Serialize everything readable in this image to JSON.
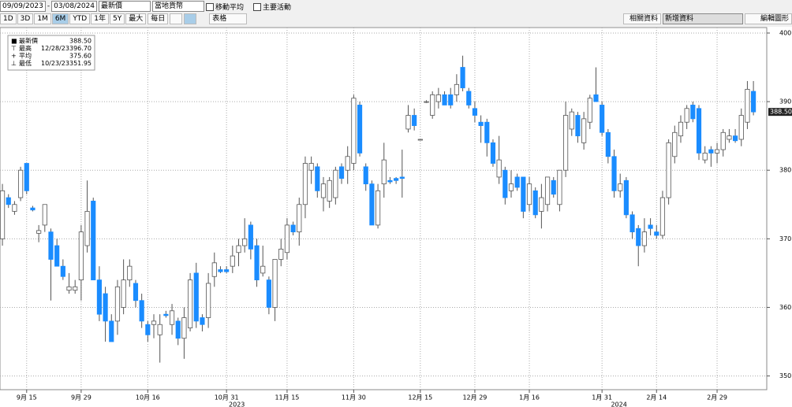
{
  "toolbar": {
    "start_date": "09/09/2023",
    "end_date": "03/08/2024",
    "field": "最新價",
    "currency": "當地貨幣",
    "moving_average": "移動平均",
    "events": "主要活動",
    "periods": [
      "1D",
      "3D",
      "1M",
      "6M",
      "YTD",
      "1年",
      "5Y",
      "最大"
    ],
    "frequency": "每日",
    "table": "表格",
    "related": "相關資料",
    "add_data": "新增資料",
    "edit_chart": "編輯圖形"
  },
  "legend": [
    {
      "label": "最新價",
      "value": "388.50"
    },
    {
      "label": "最高",
      "date": "12/28/23",
      "value": "396.70"
    },
    {
      "label": "平均",
      "value": "375.60"
    },
    {
      "label": "最低",
      "date": "10/23/23",
      "value": "351.95"
    }
  ],
  "chart_data": {
    "type": "candlestick",
    "up_color": "#ffffff",
    "down_color": "#1a8cff",
    "grid": true,
    "xlim": [
      -0.4,
      126.2
    ],
    "ylim": [
      348,
      400.8
    ],
    "yticks": [
      350,
      360,
      370,
      380,
      390,
      400
    ],
    "xticks": [
      {
        "value": 4,
        "label": "9月 15"
      },
      {
        "value": 13,
        "label": "9月 29"
      },
      {
        "value": 24,
        "label": "10月 16"
      },
      {
        "value": 37,
        "label": "10月 31"
      },
      {
        "value": 47,
        "label": "11月 15"
      },
      {
        "value": 58,
        "label": "11月 30"
      },
      {
        "value": 69,
        "label": "12月 15"
      },
      {
        "value": 78,
        "label": "12月 29"
      },
      {
        "value": 87,
        "label": "1月 16"
      },
      {
        "value": 99,
        "label": "1月 31"
      },
      {
        "value": 108,
        "label": "2月 14"
      },
      {
        "value": 118,
        "label": "2月 29"
      }
    ],
    "year_labels": [
      {
        "value": 38.7,
        "label": "2023"
      },
      {
        "value": 101.8,
        "label": "2024"
      }
    ],
    "ohlc": [
      [
        370,
        378,
        369,
        377
      ],
      [
        376,
        376.5,
        374.5,
        375
      ],
      [
        374,
        375.5,
        373.5,
        375
      ],
      [
        376,
        380.5,
        375.5,
        380
      ],
      [
        381,
        381,
        376.5,
        377
      ],
      [
        374.5,
        374.8,
        374,
        374.2
      ],
      [
        370.8,
        372,
        369.5,
        371.2
      ],
      [
        372,
        375,
        371,
        375
      ],
      [
        371,
        371.5,
        361,
        367
      ],
      [
        369,
        370,
        366,
        366
      ],
      [
        366,
        367,
        364,
        364.5
      ],
      [
        362.5,
        365,
        362,
        363
      ],
      [
        362.5,
        364,
        362,
        363
      ],
      [
        364,
        372,
        361,
        371
      ],
      [
        369,
        378.5,
        368,
        374
      ],
      [
        375.5,
        376,
        364,
        364
      ],
      [
        364,
        366,
        358,
        359
      ],
      [
        362,
        363,
        355,
        358
      ],
      [
        358,
        359,
        355,
        355
      ],
      [
        358,
        364,
        356,
        363
      ],
      [
        360,
        367,
        359,
        364
      ],
      [
        364,
        367,
        363,
        366
      ],
      [
        363.5,
        364,
        360,
        361
      ],
      [
        361,
        362,
        357,
        358
      ],
      [
        357.5,
        358,
        355,
        356
      ],
      [
        357.5,
        359,
        355.5,
        358
      ],
      [
        356,
        359,
        351.95,
        357.5
      ],
      [
        359,
        359.5,
        358.5,
        358.8
      ],
      [
        357.5,
        360.5,
        356,
        359.5
      ],
      [
        358,
        358.5,
        354.5,
        355.5
      ],
      [
        355.5,
        360,
        352.5,
        358.5
      ],
      [
        357,
        365,
        356.5,
        364
      ],
      [
        365,
        366.5,
        357,
        358
      ],
      [
        358.5,
        359,
        356.5,
        357.5
      ],
      [
        358.5,
        365,
        357,
        363.5
      ],
      [
        364.5,
        368,
        363,
        366.5
      ],
      [
        365.5,
        366,
        365,
        365.2
      ],
      [
        365.5,
        366,
        365,
        365.2
      ],
      [
        366,
        369,
        365,
        367.5
      ],
      [
        368,
        370,
        366,
        369
      ],
      [
        369,
        373,
        368,
        370
      ],
      [
        372,
        372.5,
        367,
        368.5
      ],
      [
        369,
        370,
        363,
        364
      ],
      [
        365,
        369,
        364.5,
        366
      ],
      [
        364,
        364.5,
        359,
        360
      ],
      [
        360,
        367,
        358,
        367
      ],
      [
        367,
        370,
        366,
        368.5
      ],
      [
        368,
        373,
        367,
        372
      ],
      [
        372,
        372.5,
        370.5,
        371
      ],
      [
        371,
        376,
        369,
        375
      ],
      [
        375,
        382,
        373,
        381
      ],
      [
        380,
        382,
        378,
        381
      ],
      [
        380.5,
        381,
        376,
        377
      ],
      [
        376,
        379,
        374,
        378
      ],
      [
        375.5,
        379,
        374.5,
        378.5
      ],
      [
        376,
        380.5,
        375,
        380
      ],
      [
        380.5,
        381,
        378,
        378.8
      ],
      [
        380,
        383.5,
        378,
        382
      ],
      [
        381,
        391,
        380,
        390.5
      ],
      [
        389.5,
        390,
        382,
        382.5
      ],
      [
        380.5,
        381,
        377,
        378
      ],
      [
        378,
        378.5,
        372,
        372
      ],
      [
        372,
        378,
        371.5,
        377
      ],
      [
        378,
        384,
        376,
        381.5
      ],
      [
        378.5,
        379,
        378,
        378.3
      ],
      [
        378.8,
        379,
        378,
        378.5
      ],
      [
        379,
        383,
        376,
        378.8
      ],
      [
        386,
        389.5,
        385.5,
        388
      ],
      [
        388,
        389,
        385.8,
        386.5
      ],
      [
        384.5,
        384.5,
        384.5,
        384.5
      ],
      [
        390,
        390.2,
        389.8,
        390
      ],
      [
        388,
        391.5,
        387.5,
        391
      ],
      [
        390,
        392,
        389,
        391
      ],
      [
        391,
        391.5,
        389.5,
        389.5
      ],
      [
        391,
        392,
        389,
        389.5
      ],
      [
        391,
        394,
        390,
        392.5
      ],
      [
        395,
        396.7,
        391.5,
        392
      ],
      [
        391.5,
        392,
        389,
        389.5
      ],
      [
        389,
        390,
        387,
        388
      ],
      [
        387,
        388,
        384,
        386.5
      ],
      [
        387,
        387.5,
        382,
        384
      ],
      [
        384,
        384.5,
        380.5,
        381
      ],
      [
        379,
        385,
        378,
        381.5
      ],
      [
        380,
        380.5,
        375,
        376
      ],
      [
        377,
        380,
        376,
        378
      ],
      [
        379,
        379.5,
        377,
        377.5
      ],
      [
        379,
        379,
        373,
        374
      ],
      [
        375,
        379,
        374,
        378
      ],
      [
        377,
        377.5,
        373,
        373.5
      ],
      [
        374,
        378,
        371.5,
        376
      ],
      [
        375,
        379,
        374,
        379
      ],
      [
        378.5,
        379,
        376,
        376.5
      ],
      [
        375,
        380,
        374,
        380
      ],
      [
        380,
        390,
        379,
        388
      ],
      [
        386,
        389,
        385,
        388.5
      ],
      [
        388,
        388.5,
        384,
        385
      ],
      [
        384,
        388.5,
        383,
        387.5
      ],
      [
        387,
        391,
        386,
        390.5
      ],
      [
        391,
        395,
        390,
        390
      ],
      [
        389.5,
        390,
        385,
        385.5
      ],
      [
        385.5,
        386,
        381,
        382
      ],
      [
        382,
        383,
        376,
        377
      ],
      [
        377,
        379.5,
        376,
        378
      ],
      [
        378.5,
        379,
        373,
        373.5
      ],
      [
        373.5,
        374,
        370,
        371
      ],
      [
        371.5,
        372,
        366,
        369
      ],
      [
        369,
        373,
        368,
        371
      ],
      [
        372,
        373,
        370.5,
        371.5
      ],
      [
        371,
        372,
        370,
        370.5
      ],
      [
        370.5,
        377,
        370,
        376
      ],
      [
        376,
        384.5,
        375,
        384
      ],
      [
        382,
        386.5,
        381,
        385.5
      ],
      [
        385,
        388,
        384,
        387
      ],
      [
        387,
        389.5,
        386,
        389
      ],
      [
        389.5,
        390,
        387,
        387.5
      ],
      [
        389,
        389.5,
        381.5,
        382.5
      ],
      [
        381.5,
        383.5,
        381,
        382.5
      ],
      [
        383,
        383.5,
        380.5,
        382.5
      ],
      [
        382.5,
        384,
        381,
        383
      ],
      [
        383,
        386,
        382,
        385.5
      ],
      [
        384.5,
        386,
        384,
        385
      ],
      [
        385,
        386,
        384,
        384.3
      ],
      [
        384.5,
        389,
        383.5,
        388
      ],
      [
        387,
        393,
        386,
        391.8
      ],
      [
        391.5,
        393,
        388,
        388.5
      ]
    ]
  }
}
